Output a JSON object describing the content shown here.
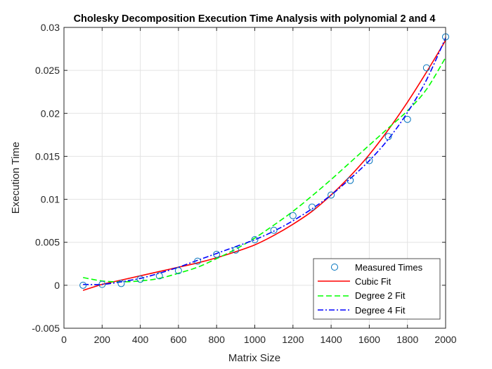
{
  "chart_data": {
    "type": "line",
    "title": "Cholesky Decomposition Execution Time Analysis with polynomial 2 and 4",
    "xlabel": "Matrix Size",
    "ylabel": "Execution Time",
    "xlim": [
      0,
      2000
    ],
    "ylim": [
      -0.005,
      0.03
    ],
    "xticks": [
      0,
      200,
      400,
      600,
      800,
      1000,
      1200,
      1400,
      1600,
      1800,
      2000
    ],
    "yticks": [
      -0.005,
      0,
      0.005,
      0.01,
      0.015,
      0.02,
      0.025,
      0.03
    ],
    "xtick_labels": [
      "0",
      "200",
      "400",
      "600",
      "800",
      "1000",
      "1200",
      "1400",
      "1600",
      "1800",
      "2000"
    ],
    "ytick_labels": [
      "-0.005",
      "0",
      "0.005",
      "0.01",
      "0.015",
      "0.02",
      "0.025",
      "0.03"
    ],
    "grid": true,
    "legend_position": "bottom-right",
    "measured": {
      "name": "Measured Times",
      "color": "#0072BD",
      "x": [
        100,
        200,
        300,
        400,
        500,
        600,
        700,
        800,
        900,
        1000,
        1100,
        1200,
        1300,
        1400,
        1500,
        1600,
        1700,
        1800,
        1900,
        2000
      ],
      "y": [
        0.0,
        0.0001,
        0.0002,
        0.0007,
        0.0011,
        0.0017,
        0.0028,
        0.0036,
        0.0041,
        0.0053,
        0.0064,
        0.0081,
        0.0091,
        0.0105,
        0.0122,
        0.0145,
        0.0173,
        0.0193,
        0.0253,
        0.0289
      ]
    },
    "series": [
      {
        "name": "Cubic Fit",
        "color": "#ff0000",
        "dash": "solid",
        "x": [
          100,
          200,
          300,
          400,
          500,
          600,
          700,
          800,
          900,
          1000,
          1100,
          1200,
          1300,
          1400,
          1500,
          1600,
          1700,
          1800,
          1900,
          2000
        ],
        "y": [
          -0.0006,
          0.0001,
          0.0006,
          0.0011,
          0.0016,
          0.0021,
          0.0026,
          0.0032,
          0.0039,
          0.0047,
          0.0058,
          0.0071,
          0.0086,
          0.0105,
          0.0127,
          0.0152,
          0.0181,
          0.0213,
          0.0248,
          0.0285
        ]
      },
      {
        "name": "Degree 2 Fit",
        "color": "#00ff00",
        "dash": "dashed",
        "x": [
          100,
          200,
          300,
          400,
          500,
          600,
          700,
          800,
          900,
          1000,
          1100,
          1200,
          1300,
          1400,
          1500,
          1600,
          1700,
          1800,
          1900,
          2000
        ],
        "y": [
          0.0009,
          0.0005,
          0.0004,
          0.0005,
          0.0008,
          0.0014,
          0.0021,
          0.0031,
          0.0042,
          0.0055,
          0.007,
          0.0086,
          0.0104,
          0.0123,
          0.0143,
          0.0163,
          0.0183,
          0.0203,
          0.0228,
          0.0265
        ]
      },
      {
        "name": "Degree 4 Fit",
        "color": "#0000ff",
        "dash": "dashdot",
        "x": [
          100,
          200,
          300,
          400,
          500,
          600,
          700,
          800,
          900,
          1000,
          1100,
          1200,
          1300,
          1400,
          1500,
          1600,
          1700,
          1800,
          1900,
          2000
        ],
        "y": [
          0.0001,
          0.0001,
          0.0004,
          0.0008,
          0.0014,
          0.0021,
          0.0029,
          0.0037,
          0.0045,
          0.0053,
          0.0063,
          0.0075,
          0.0089,
          0.0105,
          0.0124,
          0.0145,
          0.017,
          0.0201,
          0.0239,
          0.0288
        ]
      }
    ]
  }
}
